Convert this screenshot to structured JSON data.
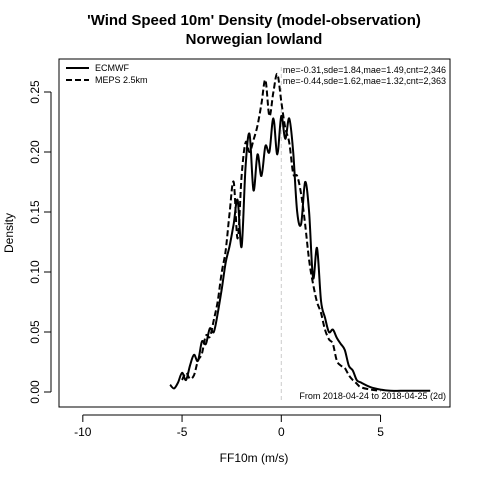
{
  "chart_data": {
    "type": "line",
    "title": "'Wind Speed 10m' Density (model-observation)",
    "subtitle": "Norwegian lowland",
    "xlabel": "FF10m (m/s)",
    "ylabel": "Density",
    "xlim": [
      -11.2,
      8.5
    ],
    "ylim": [
      -0.0125,
      0.2775
    ],
    "x_ticks": [
      -10,
      -5,
      0,
      5
    ],
    "x_tick_labels": [
      "-10",
      "-5",
      "0",
      "5"
    ],
    "y_ticks": [
      0.0,
      0.05,
      0.1,
      0.15,
      0.2,
      0.25
    ],
    "y_tick_labels": [
      "0.00",
      "0.05",
      "0.10",
      "0.15",
      "0.20",
      "0.25"
    ],
    "grid": false,
    "legend_position": "top-left",
    "reference_line_x": 0,
    "reference_line_color": "#cccccc",
    "series": [
      {
        "name": "ECMWF",
        "color": "#000000",
        "dash": "solid",
        "stats": "me=-0.31,sde=1.84,mae=1.49,cnt=2,346",
        "x": [
          -5.6,
          -5.4,
          -5.2,
          -5.0,
          -4.8,
          -4.6,
          -4.4,
          -4.2,
          -4.0,
          -3.8,
          -3.6,
          -3.4,
          -3.2,
          -3.0,
          -2.8,
          -2.6,
          -2.4,
          -2.2,
          -2.0,
          -1.8,
          -1.6,
          -1.4,
          -1.2,
          -1.0,
          -0.8,
          -0.6,
          -0.4,
          -0.2,
          0.0,
          0.2,
          0.4,
          0.6,
          0.8,
          1.0,
          1.2,
          1.4,
          1.6,
          1.8,
          2.0,
          2.2,
          2.4,
          2.6,
          2.8,
          3.0,
          3.2,
          3.4,
          3.6,
          3.8,
          4.0,
          4.5,
          5.0,
          5.5,
          6.0,
          6.5,
          7.0,
          7.5
        ],
        "y": [
          0.006,
          0.003,
          0.008,
          0.016,
          0.01,
          0.022,
          0.031,
          0.026,
          0.042,
          0.04,
          0.053,
          0.05,
          0.066,
          0.086,
          0.108,
          0.122,
          0.14,
          0.16,
          0.121,
          0.188,
          0.215,
          0.168,
          0.198,
          0.18,
          0.205,
          0.2,
          0.228,
          0.198,
          0.23,
          0.211,
          0.228,
          0.2,
          0.15,
          0.14,
          0.175,
          0.15,
          0.095,
          0.12,
          0.076,
          0.062,
          0.05,
          0.052,
          0.045,
          0.04,
          0.035,
          0.022,
          0.018,
          0.01,
          0.008,
          0.004,
          0.002,
          0.001,
          0.001,
          0.001,
          0.001,
          0.001
        ]
      },
      {
        "name": "MEPS 2.5km",
        "color": "#000000",
        "dash": "dashed",
        "stats": "me=-0.44,sde=1.62,mae=1.32,cnt=2,363",
        "x": [
          -5.0,
          -4.8,
          -4.6,
          -4.4,
          -4.2,
          -4.0,
          -3.8,
          -3.6,
          -3.4,
          -3.2,
          -3.0,
          -2.8,
          -2.6,
          -2.4,
          -2.2,
          -2.0,
          -1.8,
          -1.6,
          -1.4,
          -1.2,
          -1.0,
          -0.8,
          -0.6,
          -0.4,
          -0.2,
          0.0,
          0.2,
          0.4,
          0.6,
          0.8,
          1.0,
          1.2,
          1.4,
          1.6,
          1.8,
          2.0,
          2.2,
          2.4,
          2.6,
          2.8,
          3.0,
          3.2,
          3.4,
          3.6,
          3.8,
          4.0,
          4.5,
          5.0
        ],
        "y": [
          0.01,
          0.016,
          0.011,
          0.014,
          0.026,
          0.032,
          0.047,
          0.046,
          0.06,
          0.076,
          0.1,
          0.118,
          0.15,
          0.175,
          0.128,
          0.18,
          0.208,
          0.2,
          0.21,
          0.222,
          0.24,
          0.26,
          0.23,
          0.25,
          0.265,
          0.242,
          0.22,
          0.208,
          0.182,
          0.18,
          0.165,
          0.14,
          0.11,
          0.09,
          0.075,
          0.066,
          0.052,
          0.044,
          0.04,
          0.026,
          0.022,
          0.02,
          0.014,
          0.01,
          0.007,
          0.004,
          0.002,
          0.001
        ]
      }
    ],
    "annotation": "From 2018-04-24 to 2018-04-25 (2d)"
  }
}
